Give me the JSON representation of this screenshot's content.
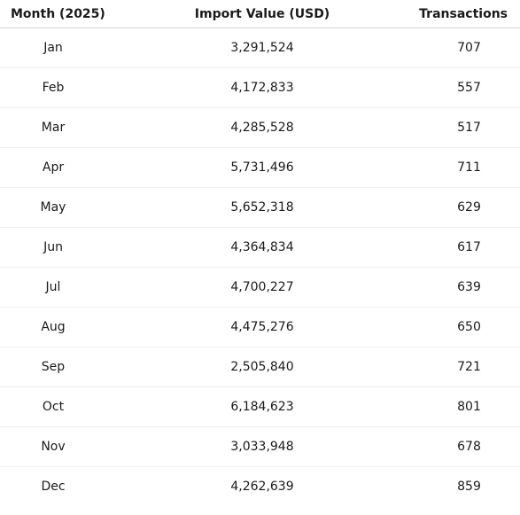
{
  "chart_data": {
    "type": "table",
    "columns": [
      "Month (2025)",
      "Import Value (USD)",
      "Transactions"
    ],
    "rows": [
      {
        "month": "Jan",
        "import_value": "3,291,524",
        "transactions": "707"
      },
      {
        "month": "Feb",
        "import_value": "4,172,833",
        "transactions": "557"
      },
      {
        "month": "Mar",
        "import_value": "4,285,528",
        "transactions": "517"
      },
      {
        "month": "Apr",
        "import_value": "5,731,496",
        "transactions": "711"
      },
      {
        "month": "May",
        "import_value": "5,652,318",
        "transactions": "629"
      },
      {
        "month": "Jun",
        "import_value": "4,364,834",
        "transactions": "617"
      },
      {
        "month": "Jul",
        "import_value": "4,700,227",
        "transactions": "639"
      },
      {
        "month": "Aug",
        "import_value": "4,475,276",
        "transactions": "650"
      },
      {
        "month": "Sep",
        "import_value": "2,505,840",
        "transactions": "721"
      },
      {
        "month": "Oct",
        "import_value": "6,184,623",
        "transactions": "801"
      },
      {
        "month": "Nov",
        "import_value": "3,033,948",
        "transactions": "678"
      },
      {
        "month": "Dec",
        "import_value": "4,262,639",
        "transactions": "859"
      }
    ]
  }
}
